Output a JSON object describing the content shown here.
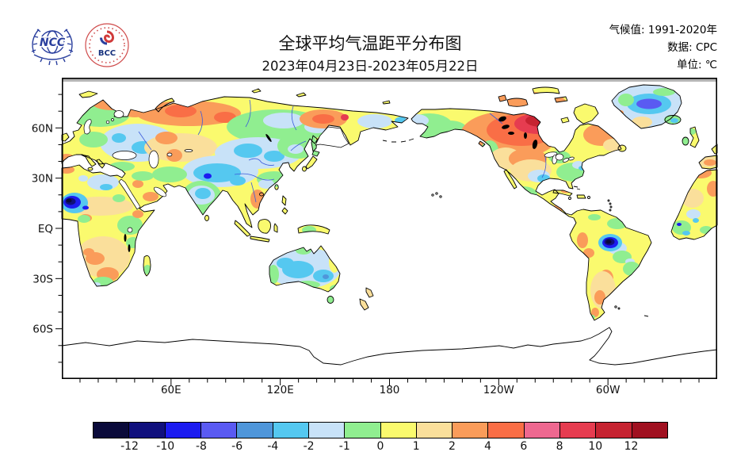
{
  "header": {
    "logos": [
      {
        "name": "ncc-logo",
        "text": "NCC"
      },
      {
        "name": "bcc-logo",
        "text": "BCC"
      }
    ],
    "title": "全球平均气温距平分布图",
    "subtitle": "2023年04月23日-2023年05月22日",
    "meta_lines": [
      "气候值: 1991-2020年",
      "数据: CPC",
      "单位: ℃"
    ]
  },
  "chart_data": {
    "type": "heatmap",
    "title": "全球平均气温距平分布图",
    "period": "2023年04月23日-2023年05月22日",
    "climatology": "1991-2020年",
    "data_source": "CPC",
    "unit": "℃",
    "projection": "equirectangular world map, longitude 0°E→360° left to right (centered on 180°), latitude 90N→90S top to bottom",
    "x_axis": {
      "ticks": [
        {
          "deg": 60,
          "label": "60E"
        },
        {
          "deg": 120,
          "label": "120E"
        },
        {
          "deg": 180,
          "label": "180"
        },
        {
          "deg": 240,
          "label": "120W"
        },
        {
          "deg": 300,
          "label": "60W"
        }
      ],
      "minor_step_deg": 10
    },
    "y_axis": {
      "ticks": [
        {
          "lat": 60,
          "label": "60N"
        },
        {
          "lat": 30,
          "label": "30N"
        },
        {
          "lat": 0,
          "label": "EQ"
        },
        {
          "lat": -30,
          "label": "30S"
        },
        {
          "lat": -60,
          "label": "60S"
        }
      ],
      "minor_step_deg": 10
    },
    "colorbar": {
      "levels": [
        -12,
        -10,
        -8,
        -6,
        -4,
        -2,
        -1,
        0,
        1,
        2,
        4,
        6,
        8,
        10,
        12
      ],
      "colors": [
        "#0a0a3a",
        "#10107d",
        "#1c1cf0",
        "#5a5af2",
        "#4f96da",
        "#55c8f0",
        "#c8e2f8",
        "#90ee90",
        "#fafa6e",
        "#fadf9b",
        "#fa9c5a",
        "#f96e46",
        "#ee6890",
        "#e63c50",
        "#c62331",
        "#a01020"
      ]
    },
    "anomaly_features": [
      {
        "region": "central/northern Canada west of Hudson Bay",
        "anomaly_c": "+6 to +12 (strongest warm)"
      },
      {
        "region": "Canadian Arctic islands, Baffin, Labrador",
        "anomaly_c": "+2 to +6"
      },
      {
        "region": "northern Russia / Urals Arctic coast",
        "anomaly_c": "+2 to +6"
      },
      {
        "region": "far-east Siberia (Kolyma–Chukotka interior)",
        "anomaly_c": "+2 to +6"
      },
      {
        "region": "eastern Europe",
        "anomaly_c": "-1 to -2"
      },
      {
        "region": "Mongolia, northern & western China, Tibetan plateau",
        "anomaly_c": "-1 to -4"
      },
      {
        "region": "central India",
        "anomaly_c": "-2 to -4"
      },
      {
        "region": "Sahel near 10-15N / 0-10E",
        "anomaly_c": "-8 to -12 (strong cold spot)"
      },
      {
        "region": "central-eastern Brazil",
        "anomaly_c": "-8 to -12 (strong cold spot)"
      },
      {
        "region": "Australia (most of interior)",
        "anomaly_c": "-1 to -4"
      },
      {
        "region": "central Greenland",
        "anomaly_c": "-4 to -8"
      },
      {
        "region": "southern Africa (Angola–Botswana)",
        "anomaly_c": "+1 to +4"
      },
      {
        "region": "Iberia / northwest Africa coast",
        "anomaly_c": "+2 to +4"
      },
      {
        "region": "Paraguay / central Argentina",
        "anomaly_c": "+1 to +4"
      },
      {
        "region": "US central plains",
        "anomaly_c": "+1 to +4"
      },
      {
        "region": "US Gulf coast / Texas spots",
        "anomaly_c": "-1 to -2"
      },
      {
        "region": "New Zealand",
        "anomaly_c": "+1 to +2"
      }
    ]
  }
}
